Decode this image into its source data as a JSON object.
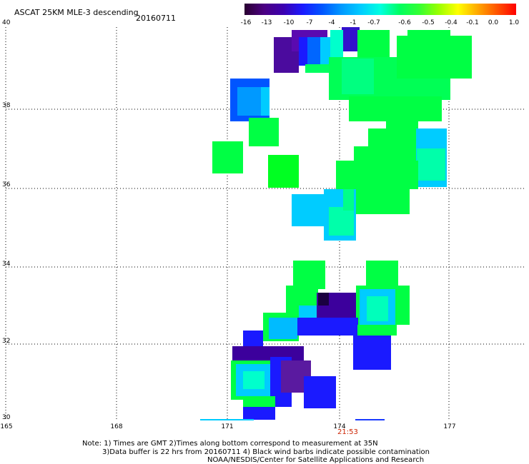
{
  "header": {
    "title": "ASCAT 25KM MLE-3 descending",
    "date": "20160711"
  },
  "colorbar": {
    "labels": [
      "-16",
      "-13",
      "-10",
      "-7",
      "-4",
      "-1",
      "-0.7",
      "-0.6",
      "-0.5",
      "-0.4",
      "-0.1",
      "0.0",
      "1.0"
    ],
    "colors": [
      "#2a0030",
      "#4b0082",
      "#3c00b0",
      "#1a1aff",
      "#0055ff",
      "#0099ff",
      "#00ccff",
      "#00ffe0",
      "#00ff60",
      "#33ff33",
      "#99ff00",
      "#ffff00",
      "#ffaa00",
      "#ff5500",
      "#ff0000"
    ]
  },
  "axes": {
    "y_ticks": [
      "40",
      "38",
      "36",
      "34",
      "32",
      "30"
    ],
    "x_ticks": [
      "165",
      "168",
      "171",
      "174",
      "177"
    ]
  },
  "swath_time": "21:53",
  "notes": {
    "line1": "Note: 1) Times are GMT 2)Times along bottom correspond to measurement at 35N",
    "line2": "3)Data buffer is 22 hrs from 20160711 4) Black wind barbs indicate possible contamination",
    "line3": "NOAA/NESDIS/Center for Satellite Applications and Research"
  }
}
